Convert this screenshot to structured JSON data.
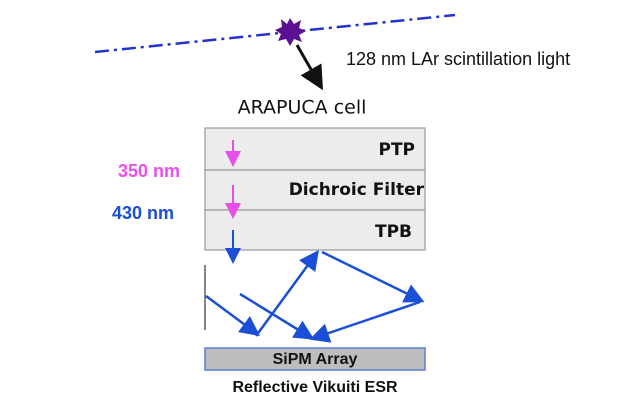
{
  "source_label": "128 nm LAr scintillation light",
  "cell_label": "ARAPUCA cell",
  "layers": [
    "PTP",
    "Dichroic Filter",
    "TPB"
  ],
  "wavelengths": [
    "350 nm",
    "430 nm"
  ],
  "detector": "SiPM Array",
  "reflector": "Reflective Vikuiti ESR"
}
